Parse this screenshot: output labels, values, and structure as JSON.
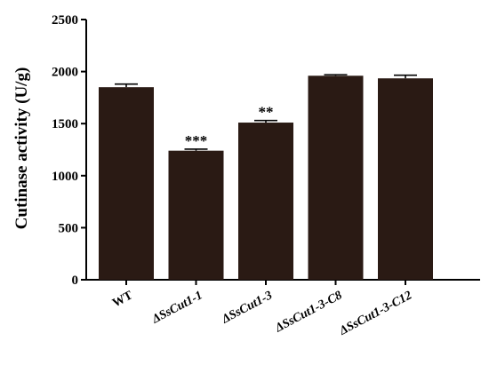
{
  "chart_data": {
    "type": "bar",
    "categories": [
      "WT",
      "ΔSsCut1-1",
      "ΔSsCut1-3",
      "ΔSsCut1-3-C8",
      "ΔSsCut1-3-C12"
    ],
    "values": [
      1850,
      1240,
      1510,
      1960,
      1935
    ],
    "errors": [
      30,
      15,
      20,
      10,
      30
    ],
    "annotations": [
      "",
      "***",
      "**",
      "",
      ""
    ],
    "ylabel": "Cutinase activity (U/g)",
    "xlabel": "",
    "ylim": [
      0,
      2500
    ],
    "yticks": [
      0,
      500,
      1000,
      1500,
      2000,
      2500
    ],
    "grid": false,
    "bar_color": "#2a1a14"
  }
}
